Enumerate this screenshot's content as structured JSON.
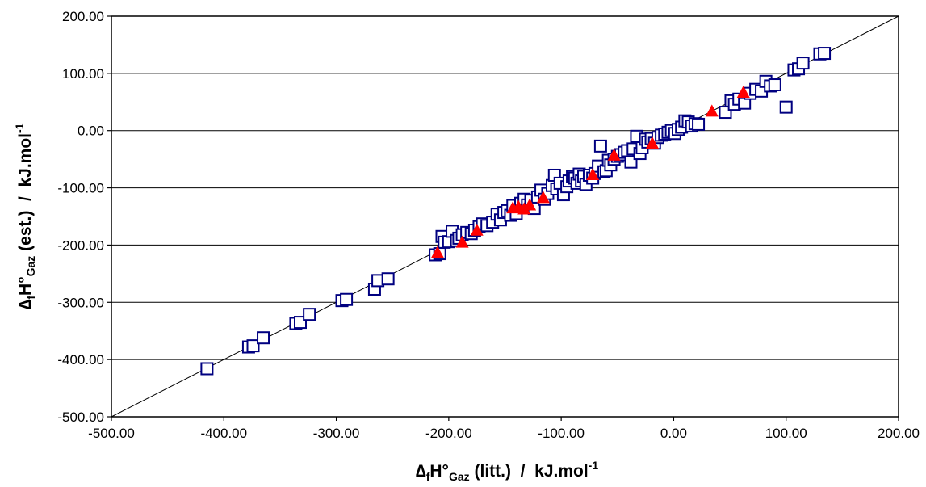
{
  "chart_data": {
    "type": "scatter",
    "title": "",
    "xlabel": {
      "delta": "∆",
      "f": "f",
      "h": "H°",
      "gaz": "Gaz",
      "rest": " (litt.)  /  kJ.mol",
      "exp": "-1"
    },
    "ylabel": {
      "delta": "∆",
      "f": "f",
      "h": "H°",
      "gaz": "Gaz",
      "rest": " (est.)  /  kJ.mol",
      "exp": "-1"
    },
    "xlim": [
      -500,
      200
    ],
    "ylim": [
      -500,
      200
    ],
    "x_ticks": [
      -500,
      -400,
      -300,
      -200,
      -100,
      0,
      100,
      200
    ],
    "y_ticks": [
      -500,
      -400,
      -300,
      -200,
      -100,
      0,
      100,
      200
    ],
    "x_tick_labels": [
      "-500.00",
      "-400.00",
      "-300.00",
      "-200.00",
      "-100.00",
      "0.00",
      "100.00",
      "200.00"
    ],
    "y_tick_labels": [
      "-500.00",
      "-400.00",
      "-300.00",
      "-200.00",
      "-100.00",
      "0.00",
      "100.00",
      "200.00"
    ],
    "grid": "horizontal",
    "reference_line": {
      "from": [
        -500,
        -500
      ],
      "to": [
        200,
        200
      ]
    },
    "colors": {
      "square": "#000080",
      "triangle": "#ff0000",
      "line": "#000000",
      "grid": "#000000"
    },
    "series": [
      {
        "marker": "square",
        "points": [
          [
            -415,
            -416
          ],
          [
            -378,
            -378
          ],
          [
            -374,
            -376
          ],
          [
            -365,
            -362
          ],
          [
            -336,
            -337
          ],
          [
            -332,
            -335
          ],
          [
            -324,
            -321
          ],
          [
            -295,
            -297
          ],
          [
            -291,
            -295
          ],
          [
            -266,
            -277
          ],
          [
            -263,
            -262
          ],
          [
            -254,
            -259
          ],
          [
            -212,
            -217
          ],
          [
            -208,
            -215
          ],
          [
            -206,
            -185
          ],
          [
            -204,
            -195
          ],
          [
            -200,
            -194
          ],
          [
            -197,
            -176
          ],
          [
            -193,
            -192
          ],
          [
            -191,
            -188
          ],
          [
            -188,
            -182
          ],
          [
            -184,
            -178
          ],
          [
            -180,
            -180
          ],
          [
            -177,
            -174
          ],
          [
            -173,
            -168
          ],
          [
            -170,
            -163
          ],
          [
            -166,
            -166
          ],
          [
            -161,
            -160
          ],
          [
            -157,
            -146
          ],
          [
            -154,
            -156
          ],
          [
            -151,
            -143
          ],
          [
            -148,
            -140
          ],
          [
            -145,
            -148
          ],
          [
            -143,
            -131
          ],
          [
            -140,
            -145
          ],
          [
            -136,
            -127
          ],
          [
            -133,
            -120
          ],
          [
            -130,
            -130
          ],
          [
            -127,
            -122
          ],
          [
            -124,
            -136
          ],
          [
            -121,
            -116
          ],
          [
            -118,
            -104
          ],
          [
            -115,
            -120
          ],
          [
            -112,
            -110
          ],
          [
            -108,
            -96
          ],
          [
            -106,
            -78
          ],
          [
            -104,
            -102
          ],
          [
            -101,
            -92
          ],
          [
            -98,
            -112
          ],
          [
            -95,
            -98
          ],
          [
            -93,
            -88
          ],
          [
            -90,
            -80
          ],
          [
            -88,
            -83
          ],
          [
            -86,
            -92
          ],
          [
            -84,
            -76
          ],
          [
            -82,
            -88
          ],
          [
            -80,
            -80
          ],
          [
            -78,
            -94
          ],
          [
            -75,
            -78
          ],
          [
            -72,
            -83
          ],
          [
            -70,
            -75
          ],
          [
            -67,
            -62
          ],
          [
            -65,
            -27
          ],
          [
            -62,
            -72
          ],
          [
            -60,
            -70
          ],
          [
            -58,
            -52
          ],
          [
            -56,
            -60
          ],
          [
            -53,
            -50
          ],
          [
            -50,
            -45
          ],
          [
            -47,
            -42
          ],
          [
            -44,
            -38
          ],
          [
            -41,
            -35
          ],
          [
            -38,
            -55
          ],
          [
            -36,
            -32
          ],
          [
            -33,
            -10
          ],
          [
            -30,
            -40
          ],
          [
            -28,
            -30
          ],
          [
            -25,
            -15
          ],
          [
            -23,
            -20
          ],
          [
            -20,
            -14
          ],
          [
            -17,
            -22
          ],
          [
            -14,
            -12
          ],
          [
            -11,
            -8
          ],
          [
            -8,
            -6
          ],
          [
            -5,
            -3
          ],
          [
            -2,
            0
          ],
          [
            1,
            -5
          ],
          [
            4,
            2
          ],
          [
            7,
            6
          ],
          [
            10,
            17
          ],
          [
            13,
            15
          ],
          [
            16,
            8
          ],
          [
            19,
            12
          ],
          [
            22,
            11
          ],
          [
            46,
            32
          ],
          [
            51,
            52
          ],
          [
            54,
            46
          ],
          [
            58,
            55
          ],
          [
            63,
            48
          ],
          [
            68,
            65
          ],
          [
            73,
            72
          ],
          [
            78,
            69
          ],
          [
            82,
            86
          ],
          [
            86,
            78
          ],
          [
            90,
            80
          ],
          [
            100,
            41
          ],
          [
            107,
            106
          ],
          [
            111,
            108
          ],
          [
            115,
            118
          ],
          [
            130,
            134
          ],
          [
            134,
            135
          ]
        ]
      },
      {
        "marker": "triangle",
        "points": [
          [
            -210,
            -214
          ],
          [
            -188,
            -196
          ],
          [
            -175,
            -175
          ],
          [
            -143,
            -136
          ],
          [
            -138,
            -134
          ],
          [
            -133,
            -138
          ],
          [
            -128,
            -131
          ],
          [
            -116,
            -118
          ],
          [
            -72,
            -78
          ],
          [
            -53,
            -44
          ],
          [
            -19,
            -23
          ],
          [
            34,
            33
          ],
          [
            62,
            66
          ]
        ]
      }
    ]
  }
}
